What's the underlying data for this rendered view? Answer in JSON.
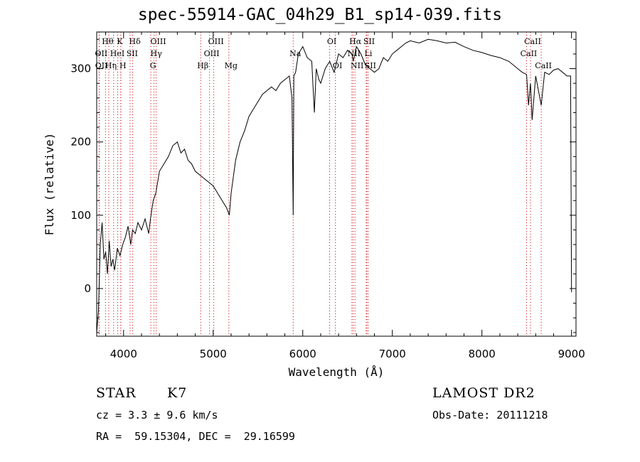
{
  "title": "spec-55914-GAC_04h29_B1_sp14-039.fits",
  "info": {
    "object_class": "STAR",
    "subclass": "K7",
    "cz": "cz = 3.3 ± 9.6 km/s",
    "coords": "RA =  59.15304, DEC =  29.16599",
    "survey": "LAMOST DR2",
    "obs_date": "Obs-Date: 20111218"
  },
  "chart_data": {
    "type": "line",
    "xlabel": "Wavelength (Å)",
    "ylabel": "Flux (relative)",
    "xlim": [
      3700,
      9050
    ],
    "ylim": [
      -65,
      350
    ],
    "xticks": [
      4000,
      5000,
      6000,
      7000,
      8000,
      9000
    ],
    "yticks": [
      0,
      100,
      200,
      300
    ],
    "grid": false,
    "color": "#000000",
    "line_color": "#cc0000",
    "series": [
      {
        "x": [
          3700,
          3720,
          3740,
          3760,
          3780,
          3800,
          3820,
          3840,
          3860,
          3880,
          3900,
          3930,
          3960,
          3990,
          4020,
          4050,
          4080,
          4100,
          4130,
          4160,
          4200,
          4240,
          4280,
          4300,
          4330,
          4360,
          4400,
          4450,
          4500,
          4550,
          4600,
          4640,
          4680,
          4720,
          4760,
          4800,
          4850,
          4900,
          4950,
          5000,
          5050,
          5100,
          5150,
          5180,
          5200,
          5250,
          5300,
          5350,
          5400,
          5450,
          5500,
          5550,
          5600,
          5650,
          5700,
          5750,
          5800,
          5850,
          5880,
          5893,
          5900,
          5920,
          5950,
          6000,
          6050,
          6100,
          6130,
          6150,
          6180,
          6200,
          6250,
          6300,
          6350,
          6400,
          6450,
          6500,
          6550,
          6563,
          6600,
          6650,
          6700,
          6750,
          6800,
          6850,
          6900,
          6950,
          7000,
          7050,
          7100,
          7150,
          7200,
          7300,
          7400,
          7500,
          7600,
          7700,
          7800,
          7900,
          8000,
          8100,
          8200,
          8300,
          8400,
          8450,
          8498,
          8520,
          8542,
          8560,
          8600,
          8662,
          8700,
          8750,
          8800,
          8850,
          8900,
          8950,
          8990,
          9000
        ],
        "values": [
          -60,
          -30,
          60,
          90,
          40,
          50,
          20,
          65,
          30,
          40,
          25,
          55,
          45,
          60,
          70,
          85,
          60,
          80,
          75,
          90,
          80,
          95,
          75,
          95,
          120,
          130,
          160,
          170,
          180,
          195,
          200,
          185,
          190,
          175,
          170,
          160,
          155,
          150,
          145,
          140,
          130,
          120,
          110,
          100,
          130,
          175,
          200,
          215,
          235,
          245,
          255,
          265,
          270,
          275,
          270,
          280,
          285,
          290,
          260,
          100,
          290,
          295,
          320,
          330,
          315,
          310,
          240,
          300,
          285,
          280,
          300,
          310,
          295,
          320,
          315,
          325,
          320,
          310,
          330,
          320,
          305,
          300,
          295,
          300,
          315,
          310,
          320,
          325,
          330,
          335,
          338,
          335,
          340,
          338,
          335,
          336,
          330,
          325,
          322,
          318,
          315,
          310,
          300,
          295,
          292,
          250,
          280,
          230,
          290,
          250,
          295,
          292,
          298,
          300,
          295,
          290,
          290,
          -5
        ]
      }
    ],
    "line_labels": [
      {
        "label": "Hθ",
        "x": 3798,
        "row": 0
      },
      {
        "label": "K",
        "x": 3934,
        "row": 0
      },
      {
        "label": "Hδ",
        "x": 4102,
        "row": 0
      },
      {
        "label": "OIII",
        "x": 4363,
        "row": 0
      },
      {
        "label": "OIII",
        "x": 5007,
        "row": 0
      },
      {
        "label": "OI",
        "x": 6300,
        "row": 0
      },
      {
        "label": "Hα",
        "x": 6563,
        "row": 0
      },
      {
        "label": "SII",
        "x": 6716,
        "row": 0
      },
      {
        "label": "CaII",
        "x": 8542,
        "row": 0
      },
      {
        "label": "OII",
        "x": 3727,
        "row": 1
      },
      {
        "label": "He",
        "x": 3889,
        "row": 1
      },
      {
        "label": "I",
        "x": 3970,
        "row": 1
      },
      {
        "label": "SII",
        "x": 4072,
        "row": 1
      },
      {
        "label": "Hγ",
        "x": 4340,
        "row": 1
      },
      {
        "label": "OIII",
        "x": 4959,
        "row": 1
      },
      {
        "label": "Na",
        "x": 5893,
        "row": 1
      },
      {
        "label": "NII",
        "x": 6548,
        "row": 1
      },
      {
        "label": "Li",
        "x": 6708,
        "row": 1
      },
      {
        "label": "CaII",
        "x": 8498,
        "row": 1
      },
      {
        "label": "OII",
        "x": 3729,
        "row": 2
      },
      {
        "label": "Hη",
        "x": 3835,
        "row": 2
      },
      {
        "label": "H",
        "x": 3968,
        "row": 2
      },
      {
        "label": "G",
        "x": 4304,
        "row": 2
      },
      {
        "label": "Hβ",
        "x": 4861,
        "row": 2
      },
      {
        "label": "Mg",
        "x": 5175,
        "row": 2
      },
      {
        "label": "OI",
        "x": 6364,
        "row": 2
      },
      {
        "label": "NII",
        "x": 6583,
        "row": 2
      },
      {
        "label": "SII",
        "x": 6731,
        "row": 2
      },
      {
        "label": "CaII",
        "x": 8662,
        "row": 2
      }
    ]
  }
}
